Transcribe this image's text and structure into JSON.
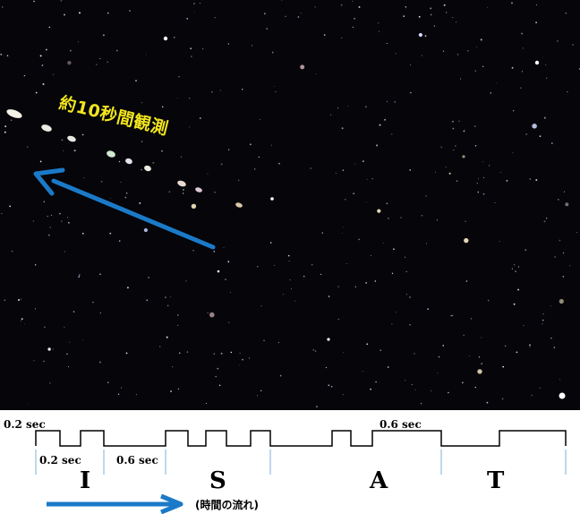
{
  "photo": {
    "caption": "約10秒間観測",
    "arrow_color": "#1b7ac8"
  },
  "diagram": {
    "label_top_left": "0.2 sec",
    "label_top_right": "0.6 sec",
    "label_mid_1": "0.2 sec",
    "label_mid_2": "0.6 sec",
    "letters": [
      "I",
      "S",
      "A",
      "T"
    ],
    "time_flow": "(時間の流れ)",
    "arrow_color": "#1b7ac8",
    "separator_color": "#7fb0d8"
  }
}
